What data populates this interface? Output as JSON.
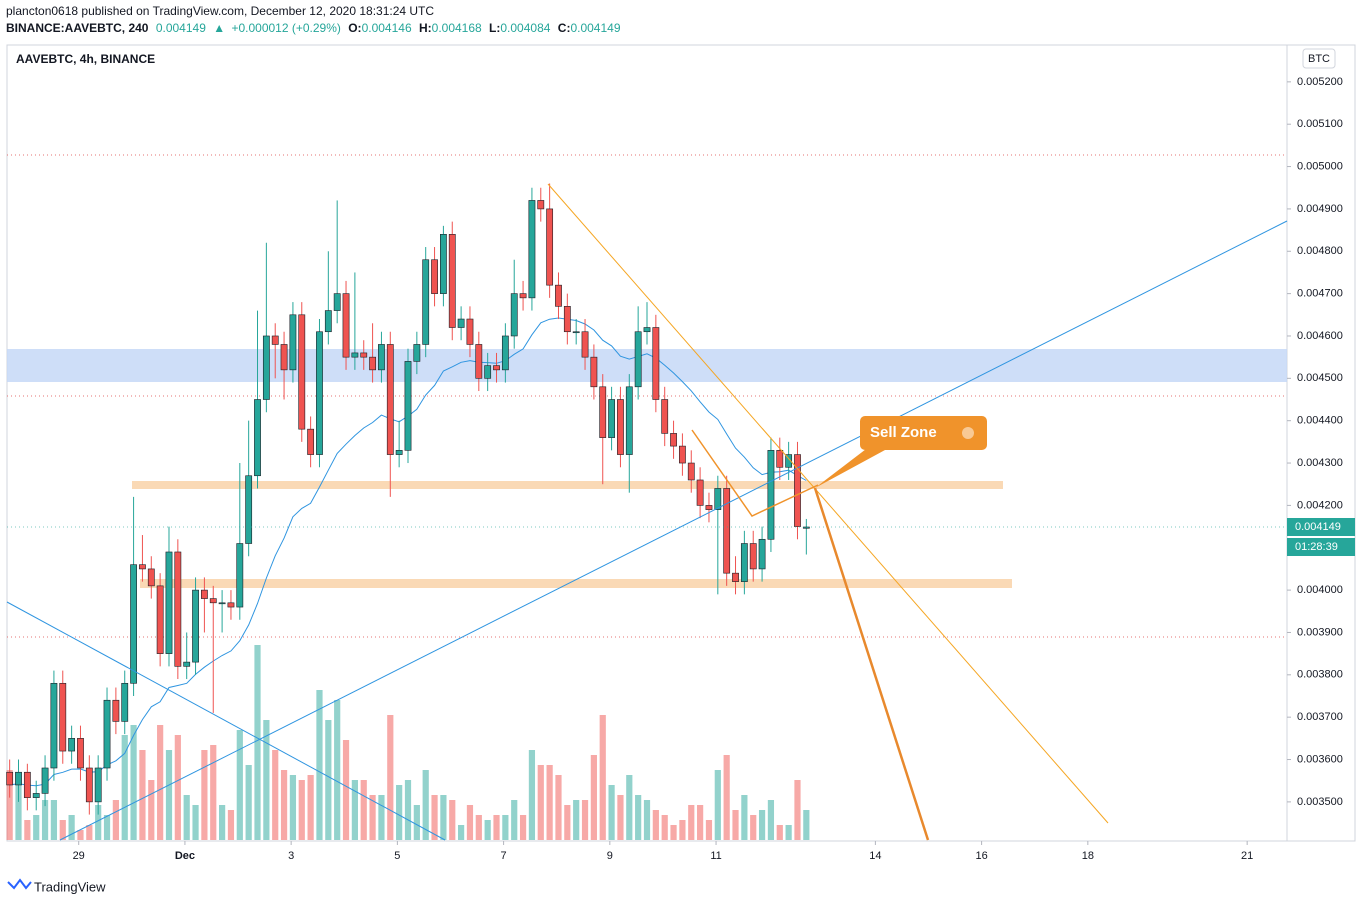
{
  "header": {
    "author_line": "plancton0618 published on TradingView.com, December 12, 2020 18:31:24 UTC",
    "symbol": "BINANCE:AAVEBTC, 240",
    "change": "+0.000012 (+0.29%)",
    "o": "O:",
    "h": "H:",
    "l": "L:",
    "c": "C:"
  },
  "footer": {
    "brand": "TradingView"
  },
  "chart_data": {
    "type": "candlestick",
    "title": "AAVEBTC, 4h, BINANCE",
    "currency": "BTC",
    "countdown": "01:28:39",
    "annotation": "Sell Zone",
    "up_color": "#26a69a",
    "down_color": "#ef5350",
    "ylim": [
      0.00341,
      0.005287
    ],
    "xlim": [
      -0.3,
      144.3
    ],
    "yticks": [
      {
        "value": 0.0035,
        "label": "0.003500"
      },
      {
        "value": 0.0036,
        "label": "0.003600"
      },
      {
        "value": 0.0037,
        "label": "0.003700"
      },
      {
        "value": 0.0038,
        "label": "0.003800"
      },
      {
        "value": 0.0039,
        "label": "0.003900"
      },
      {
        "value": 0.004,
        "label": "0.004000"
      },
      {
        "value": 0.0042,
        "label": "0.004200"
      },
      {
        "value": 0.0043,
        "label": "0.004300"
      },
      {
        "value": 0.0044,
        "label": "0.004400"
      },
      {
        "value": 0.0045,
        "label": "0.004500"
      },
      {
        "value": 0.0046,
        "label": "0.004600"
      },
      {
        "value": 0.0047,
        "label": "0.004700"
      },
      {
        "value": 0.0048,
        "label": "0.004800"
      },
      {
        "value": 0.0049,
        "label": "0.004900"
      },
      {
        "value": 0.005,
        "label": "0.005000"
      },
      {
        "value": 0.0051,
        "label": "0.005100"
      },
      {
        "value": 0.0052,
        "label": "0.005200"
      }
    ],
    "xticks": [
      {
        "value": 7.8,
        "label": "29"
      },
      {
        "value": 19.8,
        "label": "Dec"
      },
      {
        "value": 31.8,
        "label": "3"
      },
      {
        "value": 43.8,
        "label": "5"
      },
      {
        "value": 55.8,
        "label": "7"
      },
      {
        "value": 67.8,
        "label": "9"
      },
      {
        "value": 79.8,
        "label": "11"
      },
      {
        "value": 97.8,
        "label": "14"
      },
      {
        "value": 109.8,
        "label": "16"
      },
      {
        "value": 121.8,
        "label": "18"
      },
      {
        "value": 139.8,
        "label": "21"
      }
    ],
    "candles": [
      [
        0.00357,
        0.0036,
        0.00351,
        0.00354
      ],
      [
        0.00354,
        0.0036,
        0.0035,
        0.00357
      ],
      [
        0.00357,
        0.00359,
        0.00348,
        0.00351
      ],
      [
        0.00351,
        0.00355,
        0.00348,
        0.00352
      ],
      [
        0.00352,
        0.00361,
        0.00349,
        0.00358
      ],
      [
        0.00358,
        0.00381,
        0.00355,
        0.00378
      ],
      [
        0.00378,
        0.00381,
        0.00359,
        0.00362
      ],
      [
        0.00362,
        0.00368,
        0.00359,
        0.00365
      ],
      [
        0.00365,
        0.00368,
        0.00355,
        0.00358
      ],
      [
        0.00358,
        0.00361,
        0.00347,
        0.0035
      ],
      [
        0.0035,
        0.00361,
        0.00347,
        0.00358
      ],
      [
        0.00358,
        0.00377,
        0.00355,
        0.00374
      ],
      [
        0.00374,
        0.00377,
        0.00366,
        0.00369
      ],
      [
        0.00369,
        0.00381,
        0.00366,
        0.00378
      ],
      [
        0.00378,
        0.00422,
        0.00375,
        0.00406
      ],
      [
        0.00406,
        0.00413,
        0.00402,
        0.00405
      ],
      [
        0.00405,
        0.00408,
        0.00398,
        0.00401
      ],
      [
        0.00401,
        0.00404,
        0.00382,
        0.00385
      ],
      [
        0.00385,
        0.00415,
        0.00382,
        0.00409
      ],
      [
        0.00409,
        0.00412,
        0.00379,
        0.00382
      ],
      [
        0.00382,
        0.0039,
        0.00379,
        0.00383
      ],
      [
        0.00383,
        0.00403,
        0.0038,
        0.004
      ],
      [
        0.004,
        0.00403,
        0.0039,
        0.00398
      ],
      [
        0.00398,
        0.00401,
        0.00371,
        0.00397
      ],
      [
        0.00397,
        0.004,
        0.0039,
        0.00397
      ],
      [
        0.00397,
        0.004,
        0.00393,
        0.00396
      ],
      [
        0.00396,
        0.0043,
        0.00393,
        0.00411
      ],
      [
        0.00411,
        0.0044,
        0.00408,
        0.00427
      ],
      [
        0.00427,
        0.00466,
        0.00424,
        0.00445
      ],
      [
        0.00445,
        0.00482,
        0.00442,
        0.0046
      ],
      [
        0.0046,
        0.00463,
        0.0045,
        0.00458
      ],
      [
        0.00458,
        0.00461,
        0.00445,
        0.00452
      ],
      [
        0.00452,
        0.00468,
        0.00449,
        0.00465
      ],
      [
        0.00465,
        0.00468,
        0.00435,
        0.00438
      ],
      [
        0.00438,
        0.00441,
        0.00429,
        0.00432
      ],
      [
        0.00432,
        0.00464,
        0.00429,
        0.00461
      ],
      [
        0.00461,
        0.0048,
        0.00458,
        0.00466
      ],
      [
        0.00466,
        0.00492,
        0.00463,
        0.0047
      ],
      [
        0.0047,
        0.00473,
        0.00452,
        0.00455
      ],
      [
        0.00455,
        0.00475,
        0.00452,
        0.00456
      ],
      [
        0.00456,
        0.00459,
        0.00452,
        0.00455
      ],
      [
        0.00455,
        0.00463,
        0.00449,
        0.00452
      ],
      [
        0.00452,
        0.00461,
        0.00449,
        0.00458
      ],
      [
        0.00458,
        0.00461,
        0.00422,
        0.00432
      ],
      [
        0.00432,
        0.0044,
        0.00429,
        0.00433
      ],
      [
        0.00433,
        0.00457,
        0.0043,
        0.00454
      ],
      [
        0.00454,
        0.00461,
        0.00451,
        0.00458
      ],
      [
        0.00458,
        0.00481,
        0.00455,
        0.00478
      ],
      [
        0.00478,
        0.00481,
        0.00467,
        0.0047
      ],
      [
        0.0047,
        0.00486,
        0.00467,
        0.00484
      ],
      [
        0.00484,
        0.00487,
        0.00459,
        0.00462
      ],
      [
        0.00462,
        0.00467,
        0.00459,
        0.00464
      ],
      [
        0.00464,
        0.00467,
        0.00455,
        0.00458
      ],
      [
        0.00458,
        0.00461,
        0.00447,
        0.0045
      ],
      [
        0.0045,
        0.00456,
        0.00447,
        0.00453
      ],
      [
        0.00453,
        0.00456,
        0.00449,
        0.00452
      ],
      [
        0.00452,
        0.00463,
        0.00449,
        0.0046
      ],
      [
        0.0046,
        0.00478,
        0.00457,
        0.0047
      ],
      [
        0.0047,
        0.00473,
        0.00466,
        0.00469
      ],
      [
        0.00469,
        0.00495,
        0.00466,
        0.00492
      ],
      [
        0.00492,
        0.00495,
        0.00487,
        0.0049
      ],
      [
        0.0049,
        0.00496,
        0.00469,
        0.00472
      ],
      [
        0.00472,
        0.00475,
        0.00464,
        0.00467
      ],
      [
        0.00467,
        0.0047,
        0.00458,
        0.00461
      ],
      [
        0.00461,
        0.00464,
        0.00458,
        0.00461
      ],
      [
        0.00461,
        0.00464,
        0.00452,
        0.00455
      ],
      [
        0.00455,
        0.00458,
        0.00445,
        0.00448
      ],
      [
        0.00448,
        0.00451,
        0.00425,
        0.00436
      ],
      [
        0.00436,
        0.00448,
        0.00433,
        0.00445
      ],
      [
        0.00445,
        0.00448,
        0.00429,
        0.00432
      ],
      [
        0.00432,
        0.00451,
        0.00423,
        0.00448
      ],
      [
        0.00448,
        0.00467,
        0.00445,
        0.00461
      ],
      [
        0.00461,
        0.00468,
        0.00458,
        0.00462
      ],
      [
        0.00462,
        0.00465,
        0.00442,
        0.00445
      ],
      [
        0.00445,
        0.00448,
        0.00434,
        0.00437
      ],
      [
        0.00437,
        0.0044,
        0.00431,
        0.00434
      ],
      [
        0.00434,
        0.00437,
        0.00427,
        0.0043
      ],
      [
        0.0043,
        0.00433,
        0.00423,
        0.00426
      ],
      [
        0.00426,
        0.00429,
        0.00417,
        0.0042
      ],
      [
        0.0042,
        0.00423,
        0.00416,
        0.00419
      ],
      [
        0.00419,
        0.00427,
        0.00399,
        0.00424
      ],
      [
        0.00424,
        0.00427,
        0.00401,
        0.00404
      ],
      [
        0.00404,
        0.00408,
        0.00399,
        0.00402
      ],
      [
        0.00402,
        0.00414,
        0.00399,
        0.00411
      ],
      [
        0.00411,
        0.00414,
        0.00402,
        0.00405
      ],
      [
        0.00405,
        0.00415,
        0.00402,
        0.00412
      ],
      [
        0.00412,
        0.00436,
        0.00409,
        0.00433
      ],
      [
        0.00433,
        0.00436,
        0.00426,
        0.00429
      ],
      [
        0.00429,
        0.00435,
        0.00426,
        0.00432
      ],
      [
        0.00432,
        0.00435,
        0.00412,
        0.00415
      ],
      [
        0.004146,
        0.004168,
        0.004084,
        0.004149
      ]
    ],
    "volumes": [
      70,
      55,
      20,
      25,
      40,
      40,
      20,
      25,
      10,
      15,
      35,
      25,
      40,
      105,
      115,
      90,
      60,
      115,
      90,
      105,
      45,
      35,
      90,
      95,
      35,
      30,
      110,
      75,
      195,
      120,
      90,
      70,
      65,
      60,
      65,
      150,
      120,
      140,
      100,
      60,
      60,
      45,
      45,
      125,
      55,
      60,
      35,
      70,
      45,
      45,
      40,
      15,
      35,
      25,
      20,
      25,
      25,
      40,
      25,
      90,
      75,
      75,
      65,
      35,
      40,
      40,
      85,
      125,
      55,
      45,
      65,
      45,
      40,
      30,
      25,
      15,
      20,
      35,
      35,
      20,
      70,
      85,
      30,
      45,
      25,
      30,
      40,
      15,
      15,
      60,
      30
    ]
  }
}
